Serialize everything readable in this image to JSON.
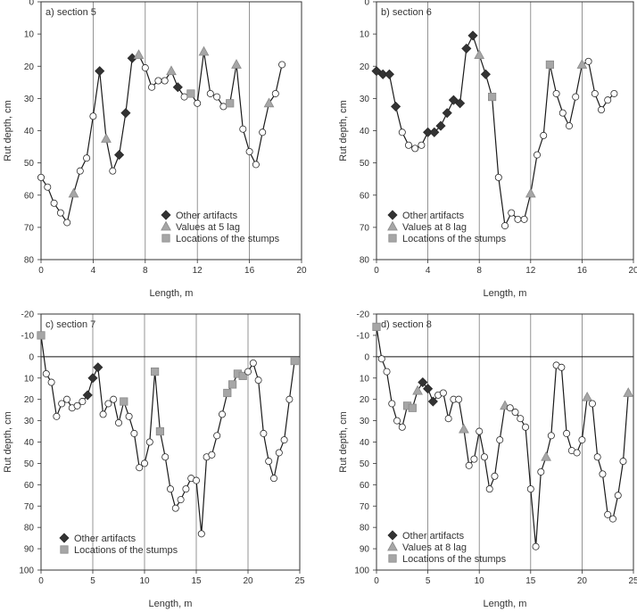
{
  "chart_data": [
    {
      "type": "line",
      "title": "a) section 5",
      "xlabel": "Length, m",
      "ylabel": "Rut depth, cm",
      "xlim": [
        0,
        20
      ],
      "ylim": [
        0,
        80
      ],
      "y_inverted": true,
      "xticks": [
        "0",
        "4",
        "8",
        "12",
        "16",
        "20"
      ],
      "yticks": [
        "0",
        "10",
        "20",
        "30",
        "40",
        "50",
        "60",
        "70",
        "80"
      ],
      "legend": [
        "Other artifacts",
        "Values at 5 lag",
        "Locations of the stumps"
      ],
      "points": [
        [
          0.0,
          54.5,
          "c"
        ],
        [
          0.5,
          57.5,
          "c"
        ],
        [
          1.0,
          62.5,
          "c"
        ],
        [
          1.5,
          65.5,
          "c"
        ],
        [
          2.0,
          68.5,
          "c"
        ],
        [
          2.5,
          59.5,
          "t"
        ],
        [
          3.0,
          52.5,
          "c"
        ],
        [
          3.5,
          48.5,
          "c"
        ],
        [
          4.0,
          35.5,
          "c"
        ],
        [
          4.5,
          21.5,
          "d"
        ],
        [
          5.0,
          42.5,
          "t"
        ],
        [
          5.5,
          52.5,
          "c"
        ],
        [
          6.0,
          47.5,
          "d"
        ],
        [
          6.5,
          34.5,
          "d"
        ],
        [
          7.0,
          17.5,
          "d"
        ],
        [
          7.5,
          16.5,
          "t"
        ],
        [
          8.0,
          20.5,
          "c"
        ],
        [
          8.5,
          26.5,
          "c"
        ],
        [
          9.0,
          24.5,
          "c"
        ],
        [
          9.5,
          24.5,
          "c"
        ],
        [
          10.0,
          21.5,
          "t"
        ],
        [
          10.5,
          26.5,
          "d"
        ],
        [
          11.0,
          29.5,
          "c"
        ],
        [
          11.5,
          28.5,
          "s"
        ],
        [
          12.0,
          31.5,
          "c"
        ],
        [
          12.5,
          15.5,
          "t"
        ],
        [
          13.0,
          28.5,
          "c"
        ],
        [
          13.5,
          29.5,
          "c"
        ],
        [
          14.0,
          32.5,
          "c"
        ],
        [
          14.5,
          31.5,
          "s"
        ],
        [
          15.0,
          19.5,
          "t"
        ],
        [
          15.5,
          39.5,
          "c"
        ],
        [
          16.0,
          46.5,
          "c"
        ],
        [
          16.5,
          50.5,
          "c"
        ],
        [
          17.0,
          40.5,
          "c"
        ],
        [
          17.5,
          31.5,
          "t"
        ],
        [
          18.0,
          28.5,
          "c"
        ],
        [
          18.5,
          19.5,
          "c"
        ]
      ]
    },
    {
      "type": "line",
      "title": "b) section 6",
      "xlabel": "Length, m",
      "ylabel": "Rut depth, cm",
      "xlim": [
        0,
        20
      ],
      "ylim": [
        0,
        80
      ],
      "y_inverted": true,
      "xticks": [
        "0",
        "4",
        "8",
        "12",
        "16",
        "20"
      ],
      "yticks": [
        "0",
        "10",
        "20",
        "30",
        "40",
        "50",
        "60",
        "70",
        "80"
      ],
      "legend": [
        "Other artifacts",
        "Values at 8 lag",
        "Locations of the stumps"
      ],
      "points": [
        [
          0.0,
          21.5,
          "d"
        ],
        [
          0.5,
          22.5,
          "d"
        ],
        [
          1.0,
          22.5,
          "d"
        ],
        [
          1.5,
          32.5,
          "d"
        ],
        [
          2.0,
          40.5,
          "c"
        ],
        [
          2.5,
          44.5,
          "c"
        ],
        [
          3.0,
          45.5,
          "c"
        ],
        [
          3.5,
          44.5,
          "c"
        ],
        [
          4.0,
          40.5,
          "d"
        ],
        [
          4.5,
          40.5,
          "d"
        ],
        [
          5.0,
          38.5,
          "d"
        ],
        [
          5.5,
          34.5,
          "d"
        ],
        [
          6.0,
          30.5,
          "d"
        ],
        [
          6.5,
          31.5,
          "d"
        ],
        [
          7.0,
          14.5,
          "d"
        ],
        [
          7.5,
          10.5,
          "d"
        ],
        [
          8.0,
          16.5,
          "t"
        ],
        [
          8.5,
          22.5,
          "d"
        ],
        [
          9.0,
          29.5,
          "s"
        ],
        [
          9.5,
          54.5,
          "c"
        ],
        [
          10.0,
          69.5,
          "c"
        ],
        [
          10.5,
          65.5,
          "c"
        ],
        [
          11.0,
          67.5,
          "c"
        ],
        [
          11.5,
          67.5,
          "c"
        ],
        [
          12.0,
          59.5,
          "t"
        ],
        [
          12.5,
          47.5,
          "c"
        ],
        [
          13.0,
          41.5,
          "c"
        ],
        [
          13.5,
          19.5,
          "s"
        ],
        [
          14.0,
          28.5,
          "c"
        ],
        [
          14.5,
          34.5,
          "c"
        ],
        [
          15.0,
          38.5,
          "c"
        ],
        [
          15.5,
          29.5,
          "c"
        ],
        [
          16.0,
          19.5,
          "t"
        ],
        [
          16.5,
          18.5,
          "c"
        ],
        [
          17.0,
          28.5,
          "c"
        ],
        [
          17.5,
          33.5,
          "c"
        ],
        [
          18.0,
          30.5,
          "c"
        ],
        [
          18.5,
          28.5,
          "c"
        ]
      ]
    },
    {
      "type": "line",
      "title": "c) section 7",
      "xlabel": "Length, m",
      "ylabel": "Rut depth, cm",
      "xlim": [
        0,
        25
      ],
      "ylim": [
        -20,
        100
      ],
      "y_inverted": true,
      "xticks": [
        "0",
        "5",
        "10",
        "15",
        "20",
        "25"
      ],
      "yticks": [
        "-20",
        "-10",
        "0",
        "10",
        "20",
        "30",
        "40",
        "50",
        "60",
        "70",
        "80",
        "90",
        "100"
      ],
      "legend": [
        "Other artifacts",
        "Locations of the stumps"
      ],
      "points": [
        [
          0.0,
          -10,
          "s"
        ],
        [
          0.5,
          8,
          "c"
        ],
        [
          1.0,
          12,
          "c"
        ],
        [
          1.5,
          28,
          "c"
        ],
        [
          2.0,
          22,
          "c"
        ],
        [
          2.5,
          20,
          "c"
        ],
        [
          3.0,
          24,
          "c"
        ],
        [
          3.5,
          23,
          "c"
        ],
        [
          4.0,
          21,
          "c"
        ],
        [
          4.5,
          18,
          "d"
        ],
        [
          5.0,
          10,
          "d"
        ],
        [
          5.5,
          5,
          "d"
        ],
        [
          6.0,
          27,
          "c"
        ],
        [
          6.5,
          22,
          "c"
        ],
        [
          7.0,
          20,
          "c"
        ],
        [
          7.5,
          31,
          "c"
        ],
        [
          8.0,
          21,
          "s"
        ],
        [
          8.5,
          28,
          "c"
        ],
        [
          9.0,
          36,
          "c"
        ],
        [
          9.5,
          52,
          "c"
        ],
        [
          10.0,
          50,
          "c"
        ],
        [
          10.5,
          40,
          "c"
        ],
        [
          11.0,
          7,
          "s"
        ],
        [
          11.5,
          35,
          "s"
        ],
        [
          12.0,
          47,
          "c"
        ],
        [
          12.5,
          62,
          "c"
        ],
        [
          13.0,
          71,
          "c"
        ],
        [
          13.5,
          67,
          "c"
        ],
        [
          14.0,
          62,
          "c"
        ],
        [
          14.5,
          57,
          "c"
        ],
        [
          15.0,
          58,
          "c"
        ],
        [
          15.5,
          83,
          "c"
        ],
        [
          16.0,
          47,
          "c"
        ],
        [
          16.5,
          46,
          "c"
        ],
        [
          17.0,
          37,
          "c"
        ],
        [
          17.5,
          27,
          "c"
        ],
        [
          18.0,
          17,
          "s"
        ],
        [
          18.5,
          13,
          "s"
        ],
        [
          19.0,
          8,
          "s"
        ],
        [
          19.5,
          9,
          "s"
        ],
        [
          20.0,
          7,
          "c"
        ],
        [
          20.5,
          3,
          "c"
        ],
        [
          21.0,
          11,
          "c"
        ],
        [
          21.5,
          36,
          "c"
        ],
        [
          22.0,
          49,
          "c"
        ],
        [
          22.5,
          57,
          "c"
        ],
        [
          23.0,
          45,
          "c"
        ],
        [
          23.5,
          39,
          "c"
        ],
        [
          24.0,
          20,
          "c"
        ],
        [
          24.5,
          2,
          "s"
        ]
      ]
    },
    {
      "type": "line",
      "title": "d) section 8",
      "xlabel": "Length, m",
      "ylabel": "Rut depth, cm",
      "xlim": [
        0,
        25
      ],
      "ylim": [
        -20,
        100
      ],
      "y_inverted": true,
      "xticks": [
        "0",
        "5",
        "10",
        "15",
        "20",
        "25"
      ],
      "yticks": [
        "-20",
        "-10",
        "0",
        "10",
        "20",
        "30",
        "40",
        "50",
        "60",
        "70",
        "80",
        "90",
        "100"
      ],
      "legend": [
        "Other artifacts",
        "Values at 8 lag",
        "Locations of the stumps"
      ],
      "points": [
        [
          0.0,
          -14,
          "s"
        ],
        [
          0.5,
          1,
          "c"
        ],
        [
          1.0,
          7,
          "c"
        ],
        [
          1.5,
          22,
          "c"
        ],
        [
          2.0,
          30,
          "c"
        ],
        [
          2.5,
          33,
          "c"
        ],
        [
          3.0,
          23,
          "s"
        ],
        [
          3.5,
          24,
          "s"
        ],
        [
          4.0,
          16,
          "t"
        ],
        [
          4.5,
          12,
          "d"
        ],
        [
          5.0,
          15,
          "d"
        ],
        [
          5.5,
          21,
          "d"
        ],
        [
          6.0,
          18,
          "c"
        ],
        [
          6.5,
          17,
          "c"
        ],
        [
          7.0,
          29,
          "c"
        ],
        [
          7.5,
          20,
          "c"
        ],
        [
          8.0,
          20,
          "c"
        ],
        [
          8.5,
          34,
          "t"
        ],
        [
          9.0,
          51,
          "c"
        ],
        [
          9.5,
          48,
          "c"
        ],
        [
          10.0,
          35,
          "c"
        ],
        [
          10.5,
          47,
          "c"
        ],
        [
          11.0,
          62,
          "c"
        ],
        [
          11.5,
          56,
          "c"
        ],
        [
          12.0,
          39,
          "c"
        ],
        [
          12.5,
          23,
          "t"
        ],
        [
          13.0,
          24,
          "c"
        ],
        [
          13.5,
          26,
          "c"
        ],
        [
          14.0,
          29,
          "c"
        ],
        [
          14.5,
          33,
          "c"
        ],
        [
          15.0,
          62,
          "c"
        ],
        [
          15.5,
          89,
          "c"
        ],
        [
          16.0,
          54,
          "c"
        ],
        [
          16.5,
          47,
          "t"
        ],
        [
          17.0,
          37,
          "c"
        ],
        [
          17.5,
          4,
          "c"
        ],
        [
          18.0,
          5,
          "c"
        ],
        [
          18.5,
          36,
          "c"
        ],
        [
          19.0,
          44,
          "c"
        ],
        [
          19.5,
          45,
          "c"
        ],
        [
          20.0,
          39,
          "c"
        ],
        [
          20.5,
          19,
          "t"
        ],
        [
          21.0,
          22,
          "c"
        ],
        [
          21.5,
          47,
          "c"
        ],
        [
          22.0,
          55,
          "c"
        ],
        [
          22.5,
          74,
          "c"
        ],
        [
          23.0,
          76,
          "c"
        ],
        [
          23.5,
          65,
          "c"
        ],
        [
          24.0,
          49,
          "c"
        ],
        [
          24.5,
          17,
          "t"
        ]
      ]
    }
  ],
  "marker_styles": {
    "d": {
      "kind": "diamond",
      "fill": "#333333"
    },
    "t": {
      "kind": "triangle",
      "fill": "#a6a6a6"
    },
    "s": {
      "kind": "square",
      "fill": "#a6a6a6"
    },
    "c": {
      "kind": "circle",
      "fill": "#ffffff"
    }
  },
  "colors": {
    "line": "#1a1a1a",
    "grid": "#7a7a7a",
    "zero_line": "#111111"
  }
}
